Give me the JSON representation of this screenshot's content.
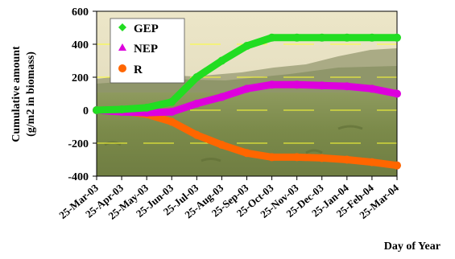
{
  "chart_data": {
    "type": "line",
    "title": "",
    "xlabel": "Day of Year",
    "ylabel": "Cumulative amount",
    "ylabel_line2": "(g/m2 in biomass)",
    "ylim": [
      -400,
      600
    ],
    "yticks": [
      -400,
      -200,
      0,
      200,
      400,
      600
    ],
    "grid": "horizontal dashed yellow lines",
    "legend": "top-left",
    "background": "grassland landscape photograph",
    "categories": [
      "25-Mar-03",
      "25-Apr-03",
      "25-May-03",
      "25-Jun-03",
      "25-Jul-03",
      "25-Aug-03",
      "25-Sep-03",
      "25-Oct-03",
      "25-Nov-03",
      "25-Dec-03",
      "25-Jan-04",
      "25-Feb-04",
      "25-Mar-04"
    ],
    "series": [
      {
        "name": "GEP",
        "color": "#22dd22",
        "marker": "diamond",
        "values": [
          0,
          5,
          15,
          50,
          200,
          300,
          390,
          440,
          440,
          440,
          440,
          440,
          440
        ]
      },
      {
        "name": "NEP",
        "color": "#dd00dd",
        "marker": "triangle",
        "values": [
          0,
          -10,
          -15,
          -10,
          40,
          80,
          130,
          155,
          155,
          150,
          145,
          130,
          100
        ]
      },
      {
        "name": "R",
        "color": "#ff6600",
        "marker": "circle",
        "values": [
          0,
          -5,
          -25,
          -70,
          -150,
          -210,
          -260,
          -285,
          -285,
          -290,
          -300,
          -315,
          -335
        ]
      }
    ]
  }
}
